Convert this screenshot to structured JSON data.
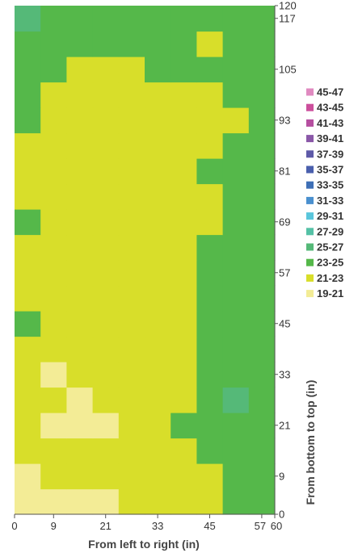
{
  "chart_data": {
    "type": "heatmap",
    "title": "",
    "xlabel": "From left to right (in)",
    "ylabel": "From bottom to top (in)",
    "xlim": [
      0,
      60
    ],
    "ylim": [
      0,
      120
    ],
    "x_ticks": [
      0,
      9,
      21,
      33,
      45,
      57,
      60
    ],
    "y_ticks": [
      0,
      9,
      21,
      33,
      45,
      57,
      69,
      81,
      93,
      105,
      117,
      120
    ],
    "x_cells": [
      3,
      9,
      15,
      21,
      27,
      33,
      39,
      45,
      51,
      57
    ],
    "y_cells": [
      3,
      9,
      15,
      21,
      27,
      33,
      39,
      45,
      51,
      57,
      63,
      69,
      75,
      81,
      87,
      93,
      99,
      105,
      111,
      117
    ],
    "z": [
      [
        19.5,
        20.5,
        20.5,
        20.5,
        21,
        21.5,
        22,
        22,
        24,
        24
      ],
      [
        20,
        21,
        21,
        21,
        21.5,
        22,
        22,
        22.5,
        24,
        24
      ],
      [
        21,
        21.5,
        21.5,
        21.5,
        22,
        22,
        22.5,
        23.5,
        24,
        24
      ],
      [
        21,
        20.5,
        20,
        20.5,
        21,
        22,
        23,
        24,
        24.5,
        24
      ],
      [
        21.5,
        21,
        20.5,
        21,
        21.5,
        22,
        22.5,
        24,
        25.5,
        24
      ],
      [
        21.5,
        20.5,
        21,
        21.5,
        22,
        22,
        22.5,
        23.5,
        24,
        24
      ],
      [
        22,
        21.5,
        22,
        22,
        22,
        22,
        22.5,
        23,
        24,
        24
      ],
      [
        23.5,
        22,
        22,
        22,
        21.5,
        22,
        22.5,
        23.5,
        24,
        24
      ],
      [
        22,
        22,
        22,
        22,
        22,
        22,
        22,
        23,
        24,
        24
      ],
      [
        22,
        22,
        22,
        22,
        22,
        22,
        22.5,
        23.5,
        24,
        24
      ],
      [
        22,
        22,
        22,
        22,
        22,
        22,
        22,
        23,
        24,
        24
      ],
      [
        23.5,
        22,
        22,
        22,
        22,
        22,
        22,
        22.5,
        24,
        24
      ],
      [
        22,
        22,
        22,
        22,
        22,
        22,
        22,
        22.5,
        24,
        24
      ],
      [
        22,
        22,
        22,
        22,
        22,
        22,
        22,
        23.5,
        24,
        24
      ],
      [
        22,
        22,
        22,
        22,
        22,
        22,
        22,
        22.5,
        23,
        24
      ],
      [
        23.5,
        22,
        22,
        22,
        22,
        22,
        22.5,
        22.5,
        22.5,
        24
      ],
      [
        23.5,
        22,
        22,
        22,
        22,
        22,
        22,
        22.5,
        24,
        24
      ],
      [
        24,
        23.5,
        22,
        22.5,
        22,
        23.5,
        24,
        24,
        24,
        24
      ],
      [
        24,
        24,
        24,
        24,
        24,
        24,
        24,
        22.5,
        24,
        24
      ],
      [
        26,
        24,
        24,
        24,
        24,
        24,
        24,
        24,
        24,
        24
      ]
    ],
    "legend_position": "right",
    "legend": [
      {
        "label": "45-47",
        "color": "#e08ac0"
      },
      {
        "label": "43-45",
        "color": "#cc4f9c"
      },
      {
        "label": "41-43",
        "color": "#b64fa0"
      },
      {
        "label": "39-41",
        "color": "#8a58a8"
      },
      {
        "label": "37-39",
        "color": "#5e5aa8"
      },
      {
        "label": "35-37",
        "color": "#4a5fad"
      },
      {
        "label": "33-35",
        "color": "#3e6fb6"
      },
      {
        "label": "31-33",
        "color": "#4a90cf"
      },
      {
        "label": "29-31",
        "color": "#5ac6dc"
      },
      {
        "label": "27-29",
        "color": "#55c1a6"
      },
      {
        "label": "25-27",
        "color": "#55b978"
      },
      {
        "label": "23-25",
        "color": "#55b84a"
      },
      {
        "label": "21-23",
        "color": "#d8de2a"
      },
      {
        "label": "19-21",
        "color": "#f3ec96"
      }
    ]
  }
}
